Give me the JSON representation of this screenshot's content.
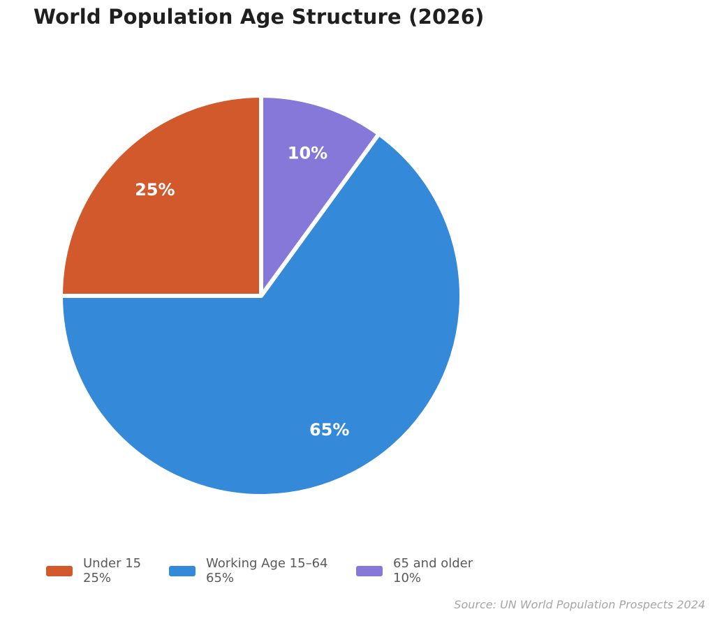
{
  "title": "World Population Age Structure (2026)",
  "source": "Source: UN World Population Prospects 2024",
  "colors": {
    "background": "#ffffff",
    "title_text": "#1f1f1f",
    "legend_text": "#58595b",
    "source_text": "#a6a6a6",
    "slice_label_text": "#ffffff",
    "slice_divider": "#ffffff"
  },
  "chart_data": {
    "type": "pie",
    "title": "World Population Age Structure (2026)",
    "start_angle_deg": 90,
    "direction": "counterclockwise",
    "legend_position": "bottom",
    "slices": [
      {
        "label": "Under 15",
        "value": 25,
        "pct_label": "25%",
        "color": "#d2592c"
      },
      {
        "label": "Working Age 15–64",
        "value": 65,
        "pct_label": "65%",
        "color": "#3589d9"
      },
      {
        "label": "65 and older",
        "value": 10,
        "pct_label": "10%",
        "color": "#8678d9"
      }
    ],
    "source": "Source: UN World Population Prospects 2024"
  }
}
